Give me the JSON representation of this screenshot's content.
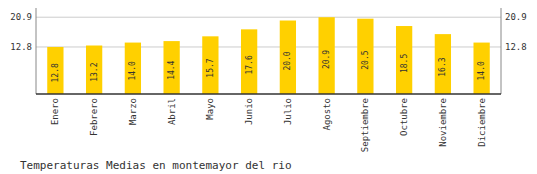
{
  "chart_data": {
    "type": "bar",
    "title": "Temperaturas Medias en montemayor del rio",
    "categories": [
      "Enero",
      "Febrero",
      "Marzo",
      "Abril",
      "Mayo",
      "Junio",
      "Julio",
      "Agosto",
      "Septiembre",
      "Octubre",
      "Noviembre",
      "Diciembre"
    ],
    "values": [
      12.8,
      13.2,
      14.0,
      14.4,
      15.7,
      17.6,
      20.0,
      20.9,
      20.5,
      18.5,
      16.3,
      14.0
    ],
    "value_labels": [
      "12.8",
      "13.2",
      "14.0",
      "14.4",
      "15.7",
      "17.6",
      "20.0",
      "20.9",
      "20.5",
      "18.5",
      "16.3",
      "14.0"
    ],
    "color": "#FFD000",
    "ylim": [
      0,
      23.408
    ],
    "yticks": [
      12.8,
      20.9
    ],
    "y2lim": [
      0,
      23.408
    ],
    "y2ticks": [
      12.8,
      20.9
    ],
    "grid": true,
    "data_labels": true
  }
}
